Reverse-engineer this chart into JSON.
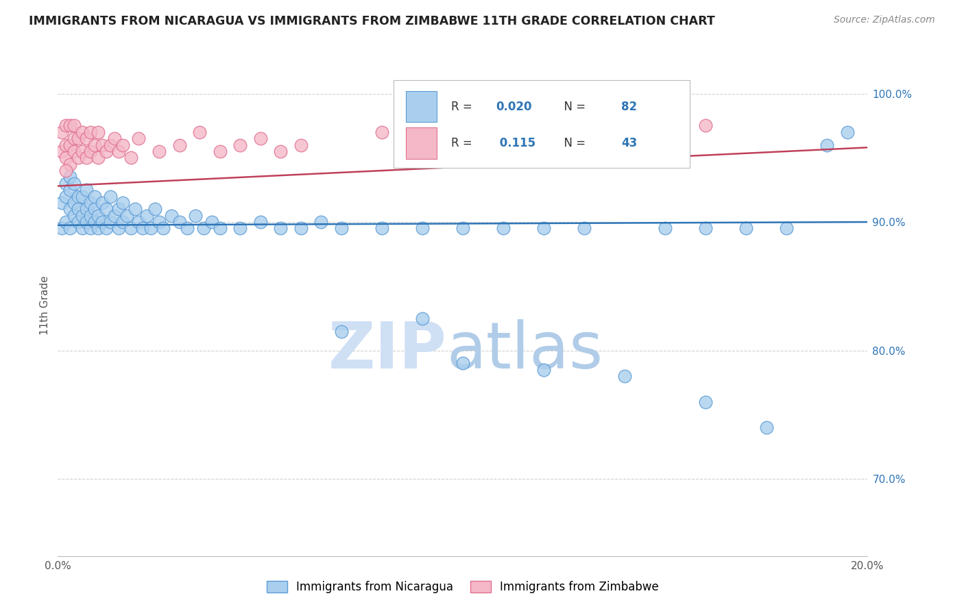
{
  "title": "IMMIGRANTS FROM NICARAGUA VS IMMIGRANTS FROM ZIMBABWE 11TH GRADE CORRELATION CHART",
  "source": "Source: ZipAtlas.com",
  "ylabel": "11th Grade",
  "legend_blue_label": "Immigrants from Nicaragua",
  "legend_pink_label": "Immigrants from Zimbabwe",
  "R_blue": "0.020",
  "N_blue": "82",
  "R_pink": "0.115",
  "N_pink": "43",
  "blue_color": "#aacfee",
  "blue_edge_color": "#5b9bd5",
  "blue_line_color": "#2e75b6",
  "pink_color": "#f4b8c8",
  "pink_edge_color": "#e07090",
  "pink_line_color": "#c0405a",
  "grid_color": "#d0d0d0",
  "right_tick_color": "#2e75b6",
  "title_color": "#222222",
  "source_color": "#888888",
  "ylabel_color": "#555555",
  "watermark_zip_color": "#cfe0f5",
  "watermark_atlas_color": "#b0cce8",
  "xlim": [
    0.0,
    0.2
  ],
  "ylim": [
    0.64,
    1.03
  ],
  "yticks": [
    0.7,
    0.8,
    0.9,
    1.0
  ],
  "ytick_labels": [
    "70.0%",
    "80.0%",
    "90.0%",
    "100.0%"
  ],
  "blue_line_y0": 0.8975,
  "blue_line_y1": 0.9,
  "pink_line_y0": 0.928,
  "pink_line_y1": 0.958,
  "blue_scatter_x": [
    0.001,
    0.001,
    0.002,
    0.002,
    0.002,
    0.003,
    0.003,
    0.003,
    0.003,
    0.004,
    0.004,
    0.004,
    0.005,
    0.005,
    0.005,
    0.006,
    0.006,
    0.006,
    0.007,
    0.007,
    0.007,
    0.008,
    0.008,
    0.008,
    0.009,
    0.009,
    0.009,
    0.01,
    0.01,
    0.011,
    0.011,
    0.012,
    0.012,
    0.013,
    0.013,
    0.014,
    0.015,
    0.015,
    0.016,
    0.016,
    0.017,
    0.018,
    0.019,
    0.02,
    0.021,
    0.022,
    0.023,
    0.024,
    0.025,
    0.026,
    0.028,
    0.03,
    0.032,
    0.034,
    0.036,
    0.038,
    0.04,
    0.045,
    0.05,
    0.055,
    0.06,
    0.065,
    0.07,
    0.08,
    0.09,
    0.1,
    0.11,
    0.12,
    0.13,
    0.15,
    0.16,
    0.17,
    0.18,
    0.19,
    0.195,
    0.07,
    0.09,
    0.1,
    0.12,
    0.14,
    0.16,
    0.175
  ],
  "blue_scatter_y": [
    0.895,
    0.915,
    0.9,
    0.92,
    0.93,
    0.91,
    0.895,
    0.925,
    0.935,
    0.905,
    0.915,
    0.93,
    0.9,
    0.92,
    0.91,
    0.895,
    0.905,
    0.92,
    0.9,
    0.91,
    0.925,
    0.895,
    0.905,
    0.915,
    0.9,
    0.91,
    0.92,
    0.895,
    0.905,
    0.9,
    0.915,
    0.895,
    0.91,
    0.9,
    0.92,
    0.905,
    0.895,
    0.91,
    0.9,
    0.915,
    0.905,
    0.895,
    0.91,
    0.9,
    0.895,
    0.905,
    0.895,
    0.91,
    0.9,
    0.895,
    0.905,
    0.9,
    0.895,
    0.905,
    0.895,
    0.9,
    0.895,
    0.895,
    0.9,
    0.895,
    0.895,
    0.9,
    0.895,
    0.895,
    0.895,
    0.895,
    0.895,
    0.895,
    0.895,
    0.895,
    0.895,
    0.895,
    0.895,
    0.96,
    0.97,
    0.815,
    0.825,
    0.79,
    0.785,
    0.78,
    0.76,
    0.74
  ],
  "pink_scatter_x": [
    0.001,
    0.001,
    0.002,
    0.002,
    0.002,
    0.003,
    0.003,
    0.003,
    0.004,
    0.004,
    0.004,
    0.005,
    0.005,
    0.006,
    0.006,
    0.007,
    0.007,
    0.008,
    0.008,
    0.009,
    0.01,
    0.01,
    0.011,
    0.012,
    0.013,
    0.014,
    0.015,
    0.016,
    0.018,
    0.02,
    0.025,
    0.03,
    0.035,
    0.04,
    0.045,
    0.05,
    0.055,
    0.06,
    0.08,
    0.1,
    0.13,
    0.16,
    0.002
  ],
  "pink_scatter_y": [
    0.955,
    0.97,
    0.95,
    0.96,
    0.975,
    0.945,
    0.96,
    0.975,
    0.955,
    0.965,
    0.975,
    0.95,
    0.965,
    0.955,
    0.97,
    0.95,
    0.965,
    0.955,
    0.97,
    0.96,
    0.95,
    0.97,
    0.96,
    0.955,
    0.96,
    0.965,
    0.955,
    0.96,
    0.95,
    0.965,
    0.955,
    0.96,
    0.97,
    0.955,
    0.96,
    0.965,
    0.955,
    0.96,
    0.97,
    0.965,
    0.96,
    0.975,
    0.94
  ]
}
